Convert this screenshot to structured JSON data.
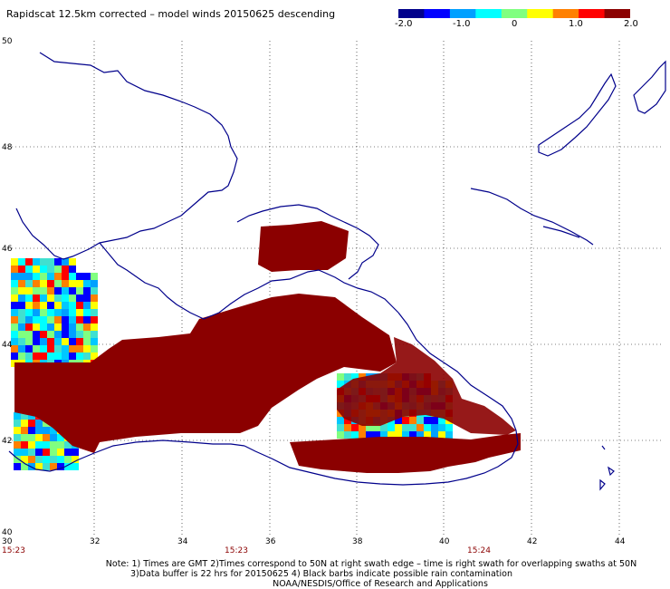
{
  "title": "Rapidscat 12.5km corrected – model winds 20150625 descending",
  "colorbar": {
    "labels": [
      "-2.0",
      "-1.0",
      "0",
      "1.0",
      "2.0"
    ],
    "colors": [
      "#00008b",
      "#0000ff",
      "#00a0ff",
      "#00ffff",
      "#80ff80",
      "#ffff00",
      "#ff8000",
      "#ff0000",
      "#8b0000"
    ]
  },
  "map": {
    "lat_labels": [
      "50",
      "48",
      "46",
      "44",
      "42",
      "40"
    ],
    "lon_labels": [
      "30",
      "32",
      "34",
      "36",
      "38",
      "40",
      "42",
      "44"
    ],
    "time_labels": [
      "15:23",
      "15:23",
      "15:24"
    ],
    "coast_color": "#00008b",
    "grid_color": "#000000",
    "rain_color": "#8b0000"
  },
  "notes": {
    "line1": "Note: 1) Times are GMT 2)Times correspond to 50N at right swath edge – time is right swath for overlapping swaths at 50N",
    "line2": "3)Data buffer is 22 hrs for 20150625 4) Black barbs indicate possible rain contamination",
    "line3": "NOAA/NESDIS/Office of Research and Applications"
  }
}
